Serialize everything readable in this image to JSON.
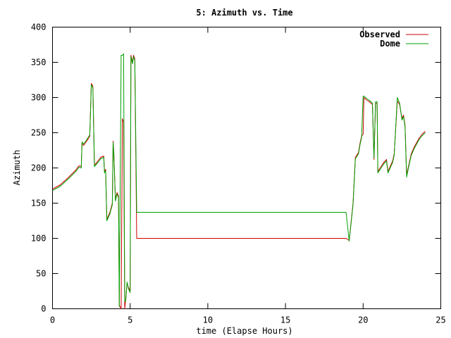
{
  "chart_data": {
    "type": "line",
    "title": "5: Azimuth vs. Time",
    "xlabel": "time (Elapse Hours)",
    "ylabel": "Azimuth",
    "xlim": [
      0,
      25
    ],
    "ylim": [
      0,
      400
    ],
    "xticks": [
      0,
      5,
      10,
      15,
      20,
      25
    ],
    "yticks": [
      0,
      50,
      100,
      150,
      200,
      250,
      300,
      350,
      400
    ],
    "grid": false,
    "legend_position": "top-right",
    "series": [
      {
        "name": "Observed",
        "color": "#cc0000",
        "points": [
          [
            0.0,
            170
          ],
          [
            0.5,
            176
          ],
          [
            1.0,
            186
          ],
          [
            1.5,
            197
          ],
          [
            1.7,
            203
          ],
          [
            1.85,
            202
          ],
          [
            1.9,
            235
          ],
          [
            2.0,
            232
          ],
          [
            2.2,
            238
          ],
          [
            2.4,
            245
          ],
          [
            2.5,
            320
          ],
          [
            2.6,
            316
          ],
          [
            2.7,
            204
          ],
          [
            2.9,
            209
          ],
          [
            3.1,
            215
          ],
          [
            3.3,
            217
          ],
          [
            3.35,
            195
          ],
          [
            3.42,
            198
          ],
          [
            3.5,
            127
          ],
          [
            3.7,
            137
          ],
          [
            3.85,
            150
          ],
          [
            3.9,
            238
          ],
          [
            3.95,
            220
          ],
          [
            4.05,
            155
          ],
          [
            4.15,
            165
          ],
          [
            4.25,
            160
          ],
          [
            4.3,
            5
          ],
          [
            4.42,
            0
          ],
          [
            4.5,
            270
          ],
          [
            4.58,
            265
          ],
          [
            4.65,
            0
          ],
          [
            4.72,
            15
          ],
          [
            4.8,
            36
          ],
          [
            4.9,
            30
          ],
          [
            5.0,
            25
          ],
          [
            5.05,
            360
          ],
          [
            5.15,
            350
          ],
          [
            5.22,
            360
          ],
          [
            5.3,
            355
          ],
          [
            5.42,
            100
          ],
          [
            18.9,
            100
          ],
          [
            19.1,
            97
          ],
          [
            19.35,
            150
          ],
          [
            19.5,
            215
          ],
          [
            19.7,
            222
          ],
          [
            19.8,
            235
          ],
          [
            19.9,
            245
          ],
          [
            20.0,
            248
          ],
          [
            20.05,
            300
          ],
          [
            20.2,
            297
          ],
          [
            20.4,
            294
          ],
          [
            20.6,
            290
          ],
          [
            20.7,
            212
          ],
          [
            20.8,
            292
          ],
          [
            20.9,
            292
          ],
          [
            20.95,
            195
          ],
          [
            21.1,
            200
          ],
          [
            21.3,
            207
          ],
          [
            21.5,
            212
          ],
          [
            21.6,
            195
          ],
          [
            21.8,
            205
          ],
          [
            21.9,
            210
          ],
          [
            22.0,
            220
          ],
          [
            22.2,
            295
          ],
          [
            22.35,
            290
          ],
          [
            22.5,
            270
          ],
          [
            22.6,
            275
          ],
          [
            22.7,
            260
          ],
          [
            22.8,
            190
          ],
          [
            22.9,
            200
          ],
          [
            23.1,
            220
          ],
          [
            23.3,
            230
          ],
          [
            23.6,
            242
          ],
          [
            23.8,
            248
          ],
          [
            24.0,
            252
          ]
        ]
      },
      {
        "name": "Dome",
        "color": "#00a000",
        "points": [
          [
            0.0,
            168
          ],
          [
            0.5,
            174
          ],
          [
            1.0,
            184
          ],
          [
            1.5,
            195
          ],
          [
            1.7,
            201
          ],
          [
            1.85,
            200
          ],
          [
            1.9,
            237
          ],
          [
            2.0,
            234
          ],
          [
            2.2,
            240
          ],
          [
            2.4,
            247
          ],
          [
            2.5,
            318
          ],
          [
            2.6,
            314
          ],
          [
            2.7,
            202
          ],
          [
            2.9,
            207
          ],
          [
            3.1,
            213
          ],
          [
            3.3,
            215
          ],
          [
            3.35,
            193
          ],
          [
            3.42,
            196
          ],
          [
            3.5,
            125
          ],
          [
            3.7,
            135
          ],
          [
            3.85,
            148
          ],
          [
            3.9,
            236
          ],
          [
            3.95,
            218
          ],
          [
            4.05,
            153
          ],
          [
            4.15,
            163
          ],
          [
            4.25,
            158
          ],
          [
            4.3,
            3
          ],
          [
            4.42,
            360
          ],
          [
            4.5,
            360
          ],
          [
            4.58,
            362
          ],
          [
            4.65,
            10
          ],
          [
            4.72,
            12
          ],
          [
            4.8,
            38
          ],
          [
            4.9,
            28
          ],
          [
            5.0,
            23
          ],
          [
            5.05,
            358
          ],
          [
            5.15,
            348
          ],
          [
            5.22,
            358
          ],
          [
            5.3,
            353
          ],
          [
            5.42,
            137
          ],
          [
            18.9,
            137
          ],
          [
            19.1,
            96
          ],
          [
            19.35,
            148
          ],
          [
            19.5,
            213
          ],
          [
            19.7,
            220
          ],
          [
            19.8,
            233
          ],
          [
            19.9,
            243
          ],
          [
            20.0,
            302
          ],
          [
            20.05,
            302
          ],
          [
            20.2,
            299
          ],
          [
            20.4,
            296
          ],
          [
            20.6,
            292
          ],
          [
            20.7,
            214
          ],
          [
            20.8,
            294
          ],
          [
            20.9,
            294
          ],
          [
            20.95,
            193
          ],
          [
            21.1,
            198
          ],
          [
            21.3,
            205
          ],
          [
            21.5,
            210
          ],
          [
            21.6,
            193
          ],
          [
            21.8,
            203
          ],
          [
            21.9,
            208
          ],
          [
            22.0,
            218
          ],
          [
            22.2,
            300
          ],
          [
            22.35,
            292
          ],
          [
            22.5,
            268
          ],
          [
            22.6,
            273
          ],
          [
            22.7,
            258
          ],
          [
            22.8,
            187
          ],
          [
            22.9,
            198
          ],
          [
            23.1,
            218
          ],
          [
            23.3,
            228
          ],
          [
            23.6,
            240
          ],
          [
            23.8,
            246
          ],
          [
            24.0,
            250
          ]
        ]
      }
    ]
  }
}
